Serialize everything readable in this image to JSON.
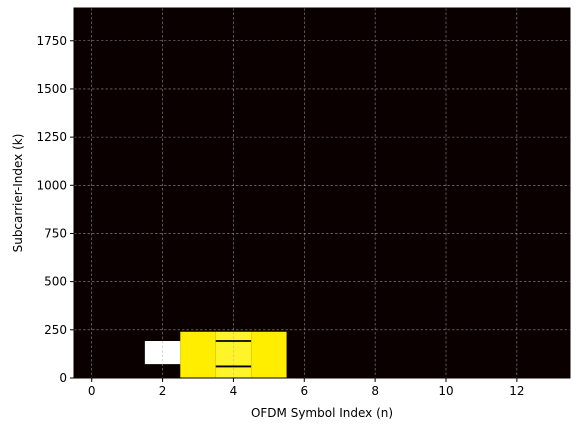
{
  "chart_data": {
    "type": "heatmap",
    "title": "",
    "xlabel": "OFDM Symbol Index (n)",
    "ylabel": "Subcarrier-Index (k)",
    "xlim": [
      -0.5,
      13.5
    ],
    "ylim": [
      0,
      1920
    ],
    "xticks": [
      0,
      2,
      4,
      6,
      8,
      10,
      12
    ],
    "yticks": [
      0,
      250,
      500,
      750,
      1000,
      1250,
      1500,
      1750
    ],
    "grid": true,
    "background_color": "#0b0000",
    "cells": [
      {
        "x0": 1.5,
        "x1": 2.5,
        "y0": 72,
        "y1": 192,
        "color": "#ffffff"
      },
      {
        "x0": 2.5,
        "x1": 3.5,
        "y0": 0,
        "y1": 240,
        "color": "#ffee00"
      },
      {
        "x0": 3.5,
        "x1": 4.5,
        "y0": 0,
        "y1": 240,
        "color": "#fff42a"
      },
      {
        "x0": 4.5,
        "x1": 5.5,
        "y0": 0,
        "y1": 240,
        "color": "#ffee00"
      }
    ],
    "markers": [
      {
        "x0": 3.5,
        "x1": 4.5,
        "y": 192,
        "color": "#000000"
      },
      {
        "x0": 3.5,
        "x1": 4.5,
        "y": 60,
        "color": "#000000"
      }
    ]
  }
}
